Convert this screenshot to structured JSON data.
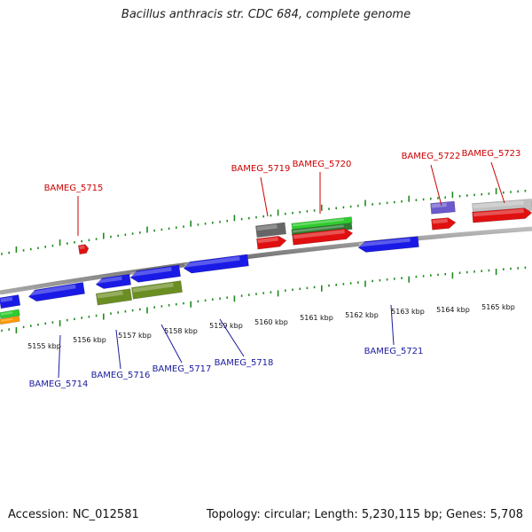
{
  "title": "Bacillus anthracis str. CDC 684, complete genome",
  "footer": {
    "accession": "Accession: NC_012581",
    "summary": "Topology: circular; Length: 5,230,115 bp; Genes: 5,708"
  },
  "colors": {
    "forward_label": "#cc0000",
    "reverse_label": "#1a1aa0",
    "backbone": "#8a8a8a",
    "tick_mark": "#1f8a1f",
    "cds_red": "#e01010",
    "cds_blue": "#1a1ae6",
    "cds_green": "#2ecc2e",
    "cds_olive": "#6b8e23",
    "cds_gray": "#666666",
    "cds_lightgray": "#c0c0c0",
    "cds_purple": "#6a5acd",
    "cds_orange": "#ff9900"
  },
  "scale": {
    "labels": [
      "5155 kbp",
      "5156 kbp",
      "5157 kbp",
      "5158 kbp",
      "5159 kbp",
      "5160 kbp",
      "5161 kbp",
      "5162 kbp",
      "5163 kbp",
      "5164 kbp",
      "5165 kbp"
    ]
  },
  "forward_genes": [
    "BAMEG_5715",
    "BAMEG_5719",
    "BAMEG_5720",
    "BAMEG_5722",
    "BAMEG_5723"
  ],
  "reverse_genes": [
    "BAMEG_5714",
    "BAMEG_5716",
    "BAMEG_5717",
    "BAMEG_5718",
    "BAMEG_5721"
  ]
}
